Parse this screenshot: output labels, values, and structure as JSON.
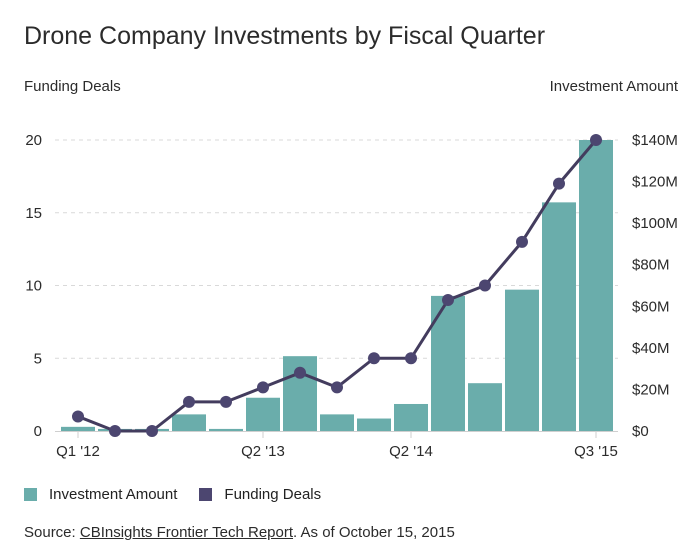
{
  "colors": {
    "bar": "#6aadab",
    "line": "#433c5e",
    "point": "#4c4670",
    "grid": "#d9d9d9"
  },
  "chart_data": {
    "type": "bar+line",
    "title": "Drone Company Investments by Fiscal Quarter",
    "ylabel_left": "Funding Deals",
    "ylabel_right": "Investment Amount",
    "categories": [
      "Q1 '12",
      "Q2 '12",
      "Q3 '12",
      "Q4 '12",
      "Q1 '13",
      "Q2 '13",
      "Q3 '13",
      "Q4 '13",
      "Q1 '14",
      "Q2 '14",
      "Q3 '14",
      "Q4 '14",
      "Q1 '15",
      "Q2 '15",
      "Q3 '15"
    ],
    "x_tick_labels": [
      "Q1 '12",
      "Q2 '13",
      "Q2 '14",
      "Q3 '15"
    ],
    "series": [
      {
        "name": "Investment Amount",
        "type": "bar",
        "axis": "right",
        "unit": "$M",
        "values": [
          2,
          1,
          1,
          8,
          1,
          16,
          36,
          8,
          6,
          13,
          65,
          23,
          68,
          110,
          140
        ]
      },
      {
        "name": "Funding Deals",
        "type": "line",
        "axis": "left",
        "values": [
          1,
          0,
          0,
          2,
          2,
          3,
          4,
          3,
          5,
          5,
          9,
          10,
          13,
          17,
          20
        ]
      }
    ],
    "ylim_left": [
      0,
      20
    ],
    "yticks_left": [
      "0",
      "5",
      "10",
      "15",
      "20"
    ],
    "ylim_right": [
      0,
      140
    ],
    "yticks_right": [
      "$0",
      "$20M",
      "$40M",
      "$60M",
      "$80M",
      "$100M",
      "$120M",
      "$140M"
    ],
    "grid": true,
    "legend": "bottom-left"
  },
  "legend": {
    "items": [
      "Investment Amount",
      "Funding Deals"
    ]
  },
  "source": {
    "prefix": "Source: ",
    "link_text": "CBInsights Frontier Tech Report",
    "suffix": ". As of October 15, 2015"
  }
}
